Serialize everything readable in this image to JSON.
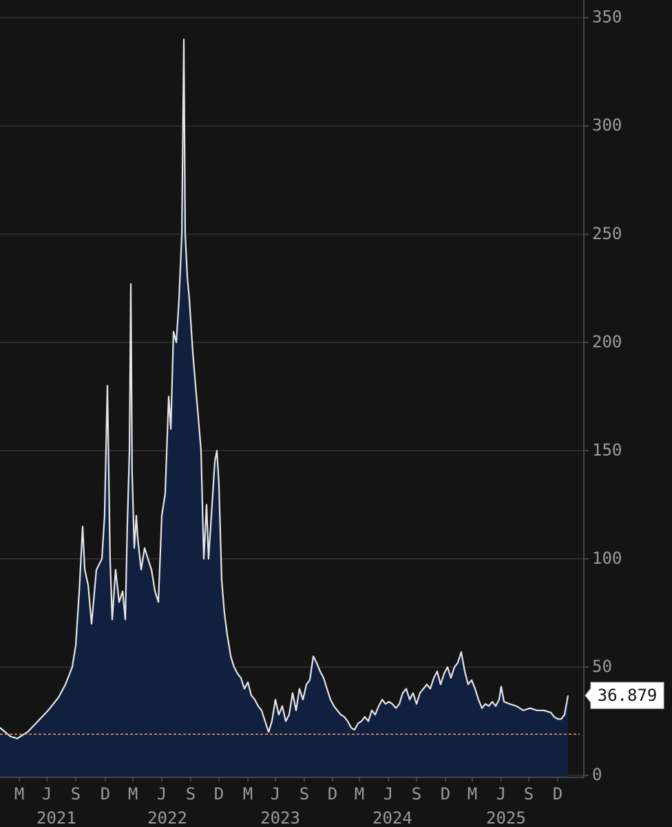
{
  "chart_data": {
    "type": "area",
    "series": [
      {
        "color": "#e6e6e6",
        "fill": "#12203f",
        "x": [
          2021.0,
          2021.092,
          2021.153,
          2021.245,
          2021.337,
          2021.429,
          2021.521,
          2021.582,
          2021.643,
          2021.674,
          2021.705,
          2021.735,
          2021.754,
          2021.784,
          2021.815,
          2021.858,
          2021.907,
          2021.931,
          2021.956,
          2021.98,
          2021.999,
          2022.029,
          2022.06,
          2022.091,
          2022.115,
          2022.133,
          2022.152,
          2022.164,
          2022.176,
          2022.195,
          2022.213,
          2022.225,
          2022.256,
          2022.287,
          2022.317,
          2022.348,
          2022.379,
          2022.409,
          2022.44,
          2022.47,
          2022.501,
          2022.52,
          2022.544,
          2022.569,
          2022.593,
          2022.618,
          2022.636,
          2022.648,
          2022.667,
          2022.685,
          2022.716,
          2022.74,
          2022.765,
          2022.789,
          2022.814,
          2022.838,
          2022.856,
          2022.881,
          2022.912,
          2022.93,
          2022.948,
          2022.973,
          2022.997,
          2023.022,
          2023.053,
          2023.083,
          2023.114,
          2023.144,
          2023.175,
          2023.206,
          2023.236,
          2023.267,
          2023.298,
          2023.328,
          2023.359,
          2023.39,
          2023.42,
          2023.451,
          2023.481,
          2023.512,
          2023.543,
          2023.573,
          2023.604,
          2023.635,
          2023.665,
          2023.696,
          2023.727,
          2023.757,
          2023.788,
          2023.818,
          2023.849,
          2023.88,
          2023.91,
          2023.941,
          2023.972,
          2024.002,
          2024.033,
          2024.064,
          2024.094,
          2024.125,
          2024.155,
          2024.186,
          2024.217,
          2024.247,
          2024.278,
          2024.309,
          2024.339,
          2024.37,
          2024.401,
          2024.431,
          2024.462,
          2024.492,
          2024.523,
          2024.554,
          2024.584,
          2024.615,
          2024.646,
          2024.676,
          2024.707,
          2024.737,
          2024.768,
          2024.799,
          2024.829,
          2024.86,
          2024.891,
          2024.921,
          2024.952,
          2024.983,
          2025.013,
          2025.044,
          2025.074,
          2025.105,
          2025.136,
          2025.166,
          2025.197,
          2025.228,
          2025.258,
          2025.289,
          2025.32,
          2025.35,
          2025.381,
          2025.411,
          2025.442,
          2025.46,
          2025.485,
          2025.534,
          2025.595,
          2025.656,
          2025.718,
          2025.779,
          2025.84,
          2025.902,
          2025.932,
          2025.963,
          2025.994,
          2026.024,
          2026.055
        ],
        "values": [
          22,
          18,
          17,
          20,
          25,
          30,
          36,
          42,
          50,
          60,
          85,
          115,
          95,
          88,
          70,
          95,
          100,
          120,
          180,
          100,
          72,
          95,
          80,
          85,
          72,
          115,
          150,
          227,
          140,
          105,
          120,
          110,
          95,
          105,
          100,
          95,
          85,
          80,
          120,
          130,
          175,
          160,
          205,
          200,
          220,
          250,
          340,
          250,
          230,
          220,
          195,
          180,
          165,
          150,
          100,
          125,
          100,
          120,
          145,
          150,
          135,
          90,
          75,
          65,
          55,
          50,
          47,
          45,
          40,
          43,
          37,
          35,
          32,
          30,
          25,
          20,
          25,
          35,
          28,
          32,
          25,
          28,
          38,
          30,
          40,
          35,
          42,
          44,
          55,
          52,
          48,
          45,
          40,
          35,
          32,
          30,
          28,
          27,
          25,
          22,
          21,
          24,
          25,
          27,
          25,
          30,
          28,
          32,
          35,
          33,
          34,
          33,
          31,
          33,
          38,
          40,
          35,
          38,
          33,
          38,
          40,
          42,
          40,
          45,
          48,
          42,
          47,
          50,
          45,
          50,
          52,
          57,
          48,
          42,
          44,
          40,
          35,
          31,
          33,
          32,
          34,
          32,
          35,
          41,
          34,
          33,
          32,
          30,
          31,
          30,
          30,
          29,
          27,
          26,
          26,
          28,
          36.879
        ]
      }
    ],
    "xlim": [
      2021.0,
      2026.196
    ],
    "xticks": [
      {
        "value": 2021.172,
        "label": "M"
      },
      {
        "value": 2021.417,
        "label": "J"
      },
      {
        "value": 2021.674,
        "label": "S"
      },
      {
        "value": 2021.937,
        "label": "D"
      },
      {
        "value": 2022.183,
        "label": "M"
      },
      {
        "value": 2022.44,
        "label": "J"
      },
      {
        "value": 2022.697,
        "label": "S"
      },
      {
        "value": 2022.948,
        "label": "D"
      },
      {
        "value": 2023.206,
        "label": "M"
      },
      {
        "value": 2023.451,
        "label": "J"
      },
      {
        "value": 2023.708,
        "label": "S"
      },
      {
        "value": 2023.959,
        "label": "D"
      },
      {
        "value": 2024.198,
        "label": "M"
      },
      {
        "value": 2024.456,
        "label": "J"
      },
      {
        "value": 2024.707,
        "label": "S"
      },
      {
        "value": 2024.964,
        "label": "D"
      },
      {
        "value": 2025.203,
        "label": "M"
      },
      {
        "value": 2025.46,
        "label": "J"
      },
      {
        "value": 2025.706,
        "label": "S"
      },
      {
        "value": 2025.963,
        "label": "D"
      }
    ],
    "year_labels": [
      {
        "value": 2021.502,
        "label": "2021"
      },
      {
        "value": 2022.489,
        "label": "2022"
      },
      {
        "value": 2023.494,
        "label": "2023"
      },
      {
        "value": 2024.492,
        "label": "2024"
      },
      {
        "value": 2025.503,
        "label": "2025"
      }
    ],
    "ylim": [
      0,
      355
    ],
    "yticks": [
      0,
      50,
      100,
      150,
      200,
      250,
      300,
      350
    ],
    "grid": true,
    "reference_line": {
      "value": 19,
      "color": "#e8a060"
    }
  }
}
